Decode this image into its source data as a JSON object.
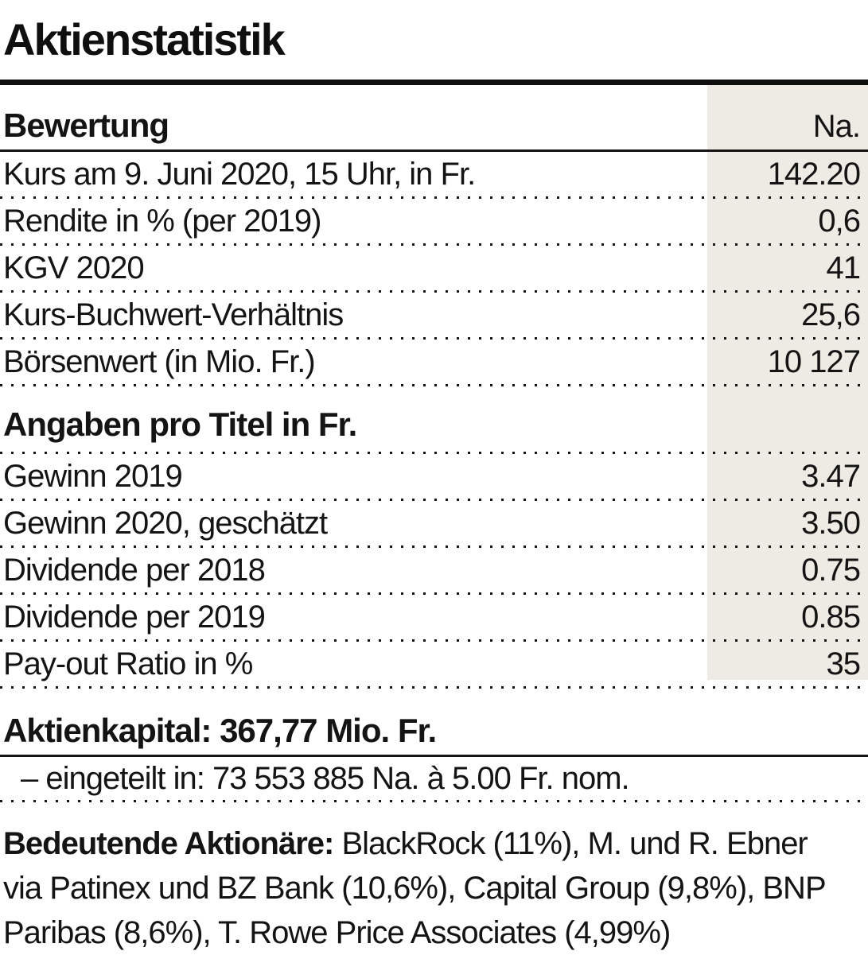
{
  "title": "Aktienstatistik",
  "colors": {
    "shade": "#edebe4",
    "text": "#141414",
    "rule": "#0f0f0f"
  },
  "table": {
    "header": {
      "label": "Bewertung",
      "value": "Na."
    },
    "rows": [
      {
        "label": "Kurs am 9. Juni 2020, 15 Uhr, in Fr.",
        "value": "142.20"
      },
      {
        "label": "Rendite in % (per 2019)",
        "value": "0,6"
      },
      {
        "label": "KGV 2020",
        "value": "41"
      },
      {
        "label": "Kurs-Buchwert-Verhältnis",
        "value": "25,6"
      },
      {
        "label": "Börsenwert (in Mio. Fr.)",
        "value": "10 127"
      }
    ],
    "subheader": "Angaben pro Titel in Fr.",
    "rows2": [
      {
        "label": "Gewinn 2019",
        "value": "3.47"
      },
      {
        "label": "Gewinn 2020, geschätzt",
        "value": "3.50"
      },
      {
        "label": "Dividende per 2018",
        "value": "0.75"
      },
      {
        "label": "Dividende per 2019",
        "value": "0.85"
      },
      {
        "label": "Pay-out Ratio in %",
        "value": "35"
      }
    ]
  },
  "capital": {
    "heading": "Aktienkapital: 367,77 Mio. Fr.",
    "detail": "– eingeteilt in: 73 553 885 Na. à 5.00 Fr. nom."
  },
  "shareholders": {
    "label": "Bedeutende Aktionäre:",
    "line1_rest": " BlackRock (11%), M. und R. Ebner",
    "line2": "via Patinex und BZ Bank (10,6%), Capital Group (9,8%), BNP",
    "line3": "Paribas (8,6%), T. Rowe Price Associates (4,99%)"
  }
}
